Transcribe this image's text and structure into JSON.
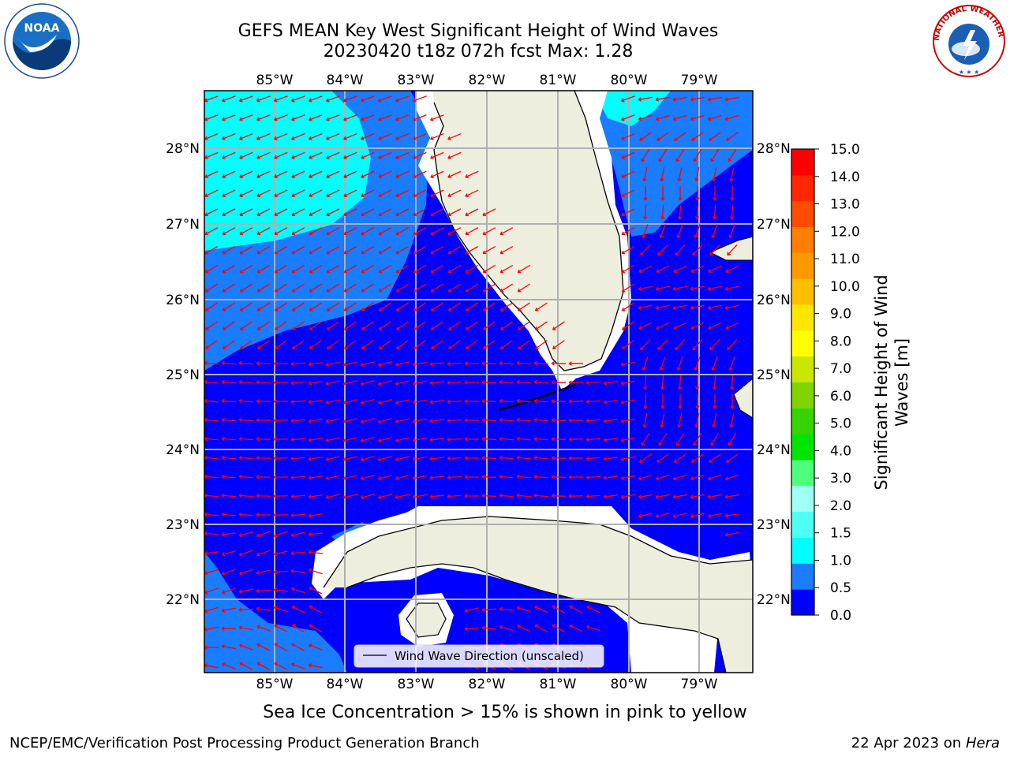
{
  "header": {
    "title_line1": "GEFS MEAN Key West Significant Height of Wind Waves",
    "title_line2": "20230420 t18z 072h fcst   Max: 1.28"
  },
  "map": {
    "lon_ticks": [
      "85°W",
      "84°W",
      "83°W",
      "82°W",
      "81°W",
      "80°W",
      "79°W"
    ],
    "lat_ticks": [
      "28°N",
      "27°N",
      "26°N",
      "25°N",
      "24°N",
      "23°N",
      "22°N"
    ],
    "legend_label": "Wind Wave Direction (unscaled)",
    "colors": {
      "ocean_low": "#0000ff",
      "ocean_mid": "#1a7cff",
      "ocean_high": "#00ffff",
      "land": "#eeeedf",
      "arrow": "#ff0000",
      "grid": "#b0b0b0"
    }
  },
  "colorbar": {
    "label": "Significant Height of Wind Waves [m]",
    "ticks": [
      "15.0",
      "14.0",
      "13.0",
      "12.0",
      "11.0",
      "10.0",
      "9.0",
      "8.0",
      "7.0",
      "6.0",
      "5.0",
      "4.0",
      "3.0",
      "2.0",
      "1.5",
      "1.0",
      "0.5",
      "0.0"
    ],
    "colors": [
      "#0000ff",
      "#1a7cff",
      "#00ffff",
      "#4dfff5",
      "#a0fff5",
      "#4dff7a",
      "#00e400",
      "#38d400",
      "#80d400",
      "#c8e600",
      "#ffff00",
      "#ffe600",
      "#ffbf00",
      "#ff9900",
      "#ff7f00",
      "#ff4c00",
      "#ff2600",
      "#ff0000"
    ]
  },
  "footer": {
    "ice_note": "Sea Ice Concentration > 15% is shown in pink to yellow",
    "credit_left": "NCEP/EMC/Verification Post Processing Product Generation Branch",
    "credit_date": "22 Apr 2023 on ",
    "credit_machine": "Hera"
  },
  "logos": {
    "noaa_text": "NOAA",
    "nws_text": "NATIONAL WEATHER SERVICE"
  }
}
